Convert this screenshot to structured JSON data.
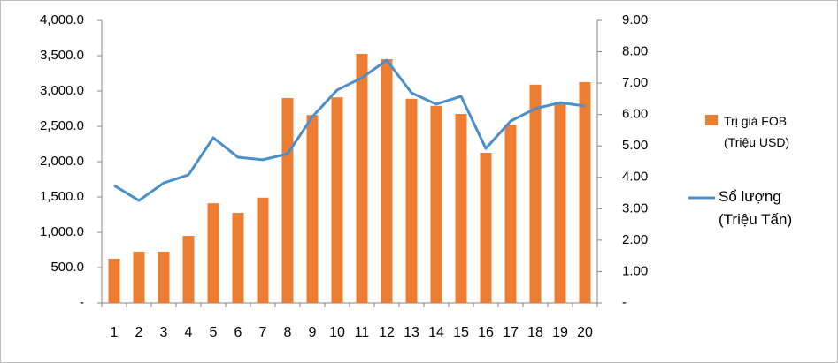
{
  "chart_data": {
    "type": "bar",
    "categories": [
      "1",
      "2",
      "3",
      "4",
      "5",
      "6",
      "7",
      "8",
      "9",
      "10",
      "11",
      "12",
      "13",
      "14",
      "15",
      "16",
      "17",
      "18",
      "19",
      "20"
    ],
    "series": [
      {
        "name": "Trị giá FOB (Triệu USD)",
        "color": "#ed7d31",
        "type": "bar",
        "values": [
          625,
          725,
          725,
          950,
          1410,
          1275,
          1490,
          2900,
          2660,
          2910,
          3525,
          3450,
          2890,
          2790,
          2675,
          2125,
          2525,
          3090,
          2825,
          3125
        ]
      },
      {
        "name": "Sổ lượng (Triệu Tấn)",
        "color": "#4a8fcb",
        "type": "line",
        "axis": "y2",
        "values": [
          3.74,
          3.26,
          3.82,
          4.08,
          5.26,
          4.64,
          4.56,
          4.75,
          5.93,
          6.78,
          7.17,
          7.73,
          6.69,
          6.33,
          6.58,
          4.92,
          5.79,
          6.19,
          6.38,
          6.27
        ]
      }
    ],
    "ylim": [
      0,
      4000
    ],
    "yticks": [
      {
        "value": 0,
        "label": "-"
      },
      {
        "value": 500,
        "label": "500.0"
      },
      {
        "value": 1000,
        "label": "1,000.0"
      },
      {
        "value": 1500,
        "label": "1,500.0"
      },
      {
        "value": 2000,
        "label": "2,000.0"
      },
      {
        "value": 2500,
        "label": "2,500.0"
      },
      {
        "value": 3000,
        "label": "3,000.0"
      },
      {
        "value": 3500,
        "label": "3,500.0"
      },
      {
        "value": 4000,
        "label": "4,000.0"
      }
    ],
    "y2lim": [
      0,
      9
    ],
    "y2ticks": [
      {
        "value": 0,
        "label": "-"
      },
      {
        "value": 1,
        "label": "1.00"
      },
      {
        "value": 2,
        "label": "2.00"
      },
      {
        "value": 3,
        "label": "3.00"
      },
      {
        "value": 4,
        "label": "4.00"
      },
      {
        "value": 5,
        "label": "5.00"
      },
      {
        "value": 6,
        "label": "6.00"
      },
      {
        "value": 7,
        "label": "7.00"
      },
      {
        "value": 8,
        "label": "8.00"
      },
      {
        "value": 9,
        "label": "9.00"
      }
    ],
    "grid": false,
    "legend": "right"
  }
}
